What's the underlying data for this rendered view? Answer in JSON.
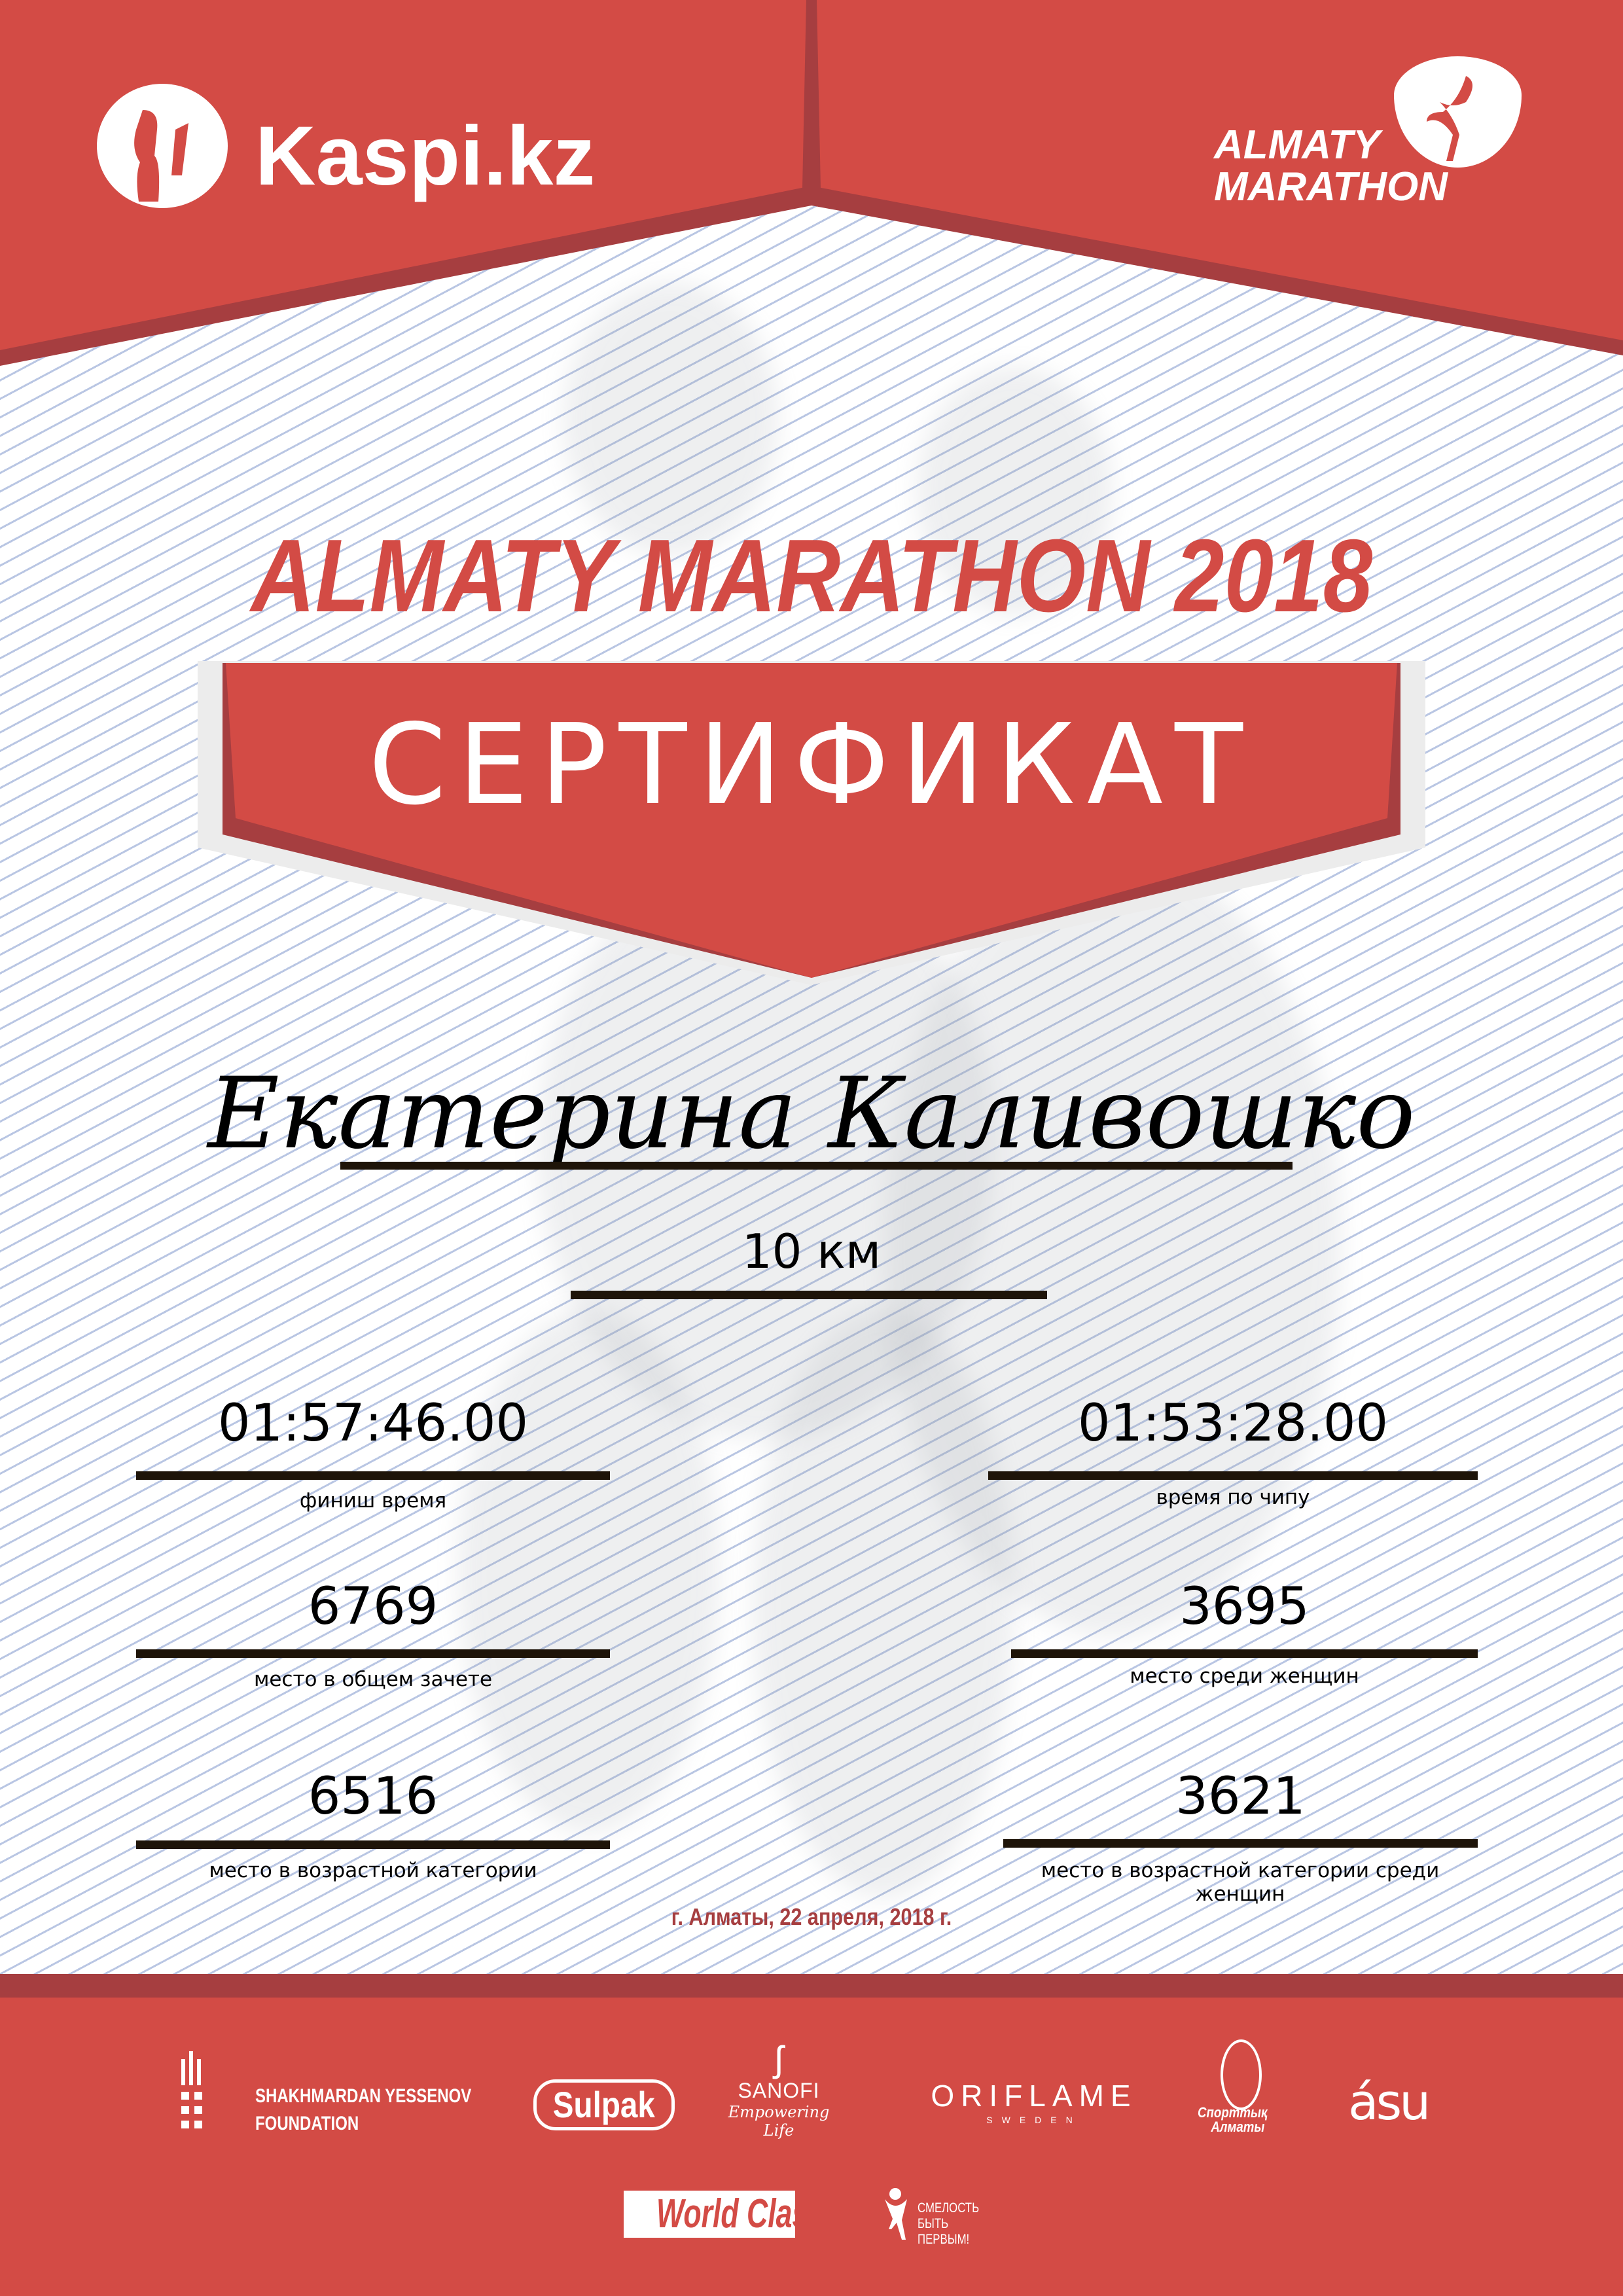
{
  "colors": {
    "brand_red": "#D34B45",
    "dark_red": "#A63E40",
    "rule": "#1E1409",
    "date_red": "#A63E40"
  },
  "header": {
    "sponsor_logo": "Kaspi.kz",
    "event_logo": {
      "line1": "ALMATY",
      "line2": "MARATHON"
    }
  },
  "title": "ALMATY MARATHON 2018",
  "banner": "СЕРТИФИКАТ",
  "participant": {
    "name": "Екатерина Каливошко",
    "distance": "10 км"
  },
  "results": [
    {
      "value": "01:57:46.00",
      "label": "финиш время"
    },
    {
      "value": "01:53:28.00",
      "label": "время по чипу"
    },
    {
      "value": "6769",
      "label": "место в общем зачете"
    },
    {
      "value": "3695",
      "label": "место среди женщин"
    },
    {
      "value": "6516",
      "label": "место в возрастной категории"
    },
    {
      "value": "3621",
      "label": "место в возрастной категории среди женщин"
    }
  ],
  "date_place": "г. Алматы, 22 апреля, 2018 г.",
  "partners": {
    "yessenov": {
      "line1": "SHAKHMARDAN YESSENOV",
      "line2": "FOUNDATION"
    },
    "sulpak": "Sulpak",
    "sanofi": {
      "name": "SANOFI",
      "tagline": "Empowering Life"
    },
    "oriflame": {
      "name": "ORIFLAME",
      "sub": "SWEDEN"
    },
    "sport_almaty": {
      "line1": "Спорттық",
      "line2": "Алматы"
    },
    "asu": "ásu",
    "worldclass": "World Class",
    "courage": {
      "line1": "СМЕЛОСТЬ",
      "line2": "БЫТЬ",
      "line3": "ПЕРВЫМ!"
    }
  }
}
